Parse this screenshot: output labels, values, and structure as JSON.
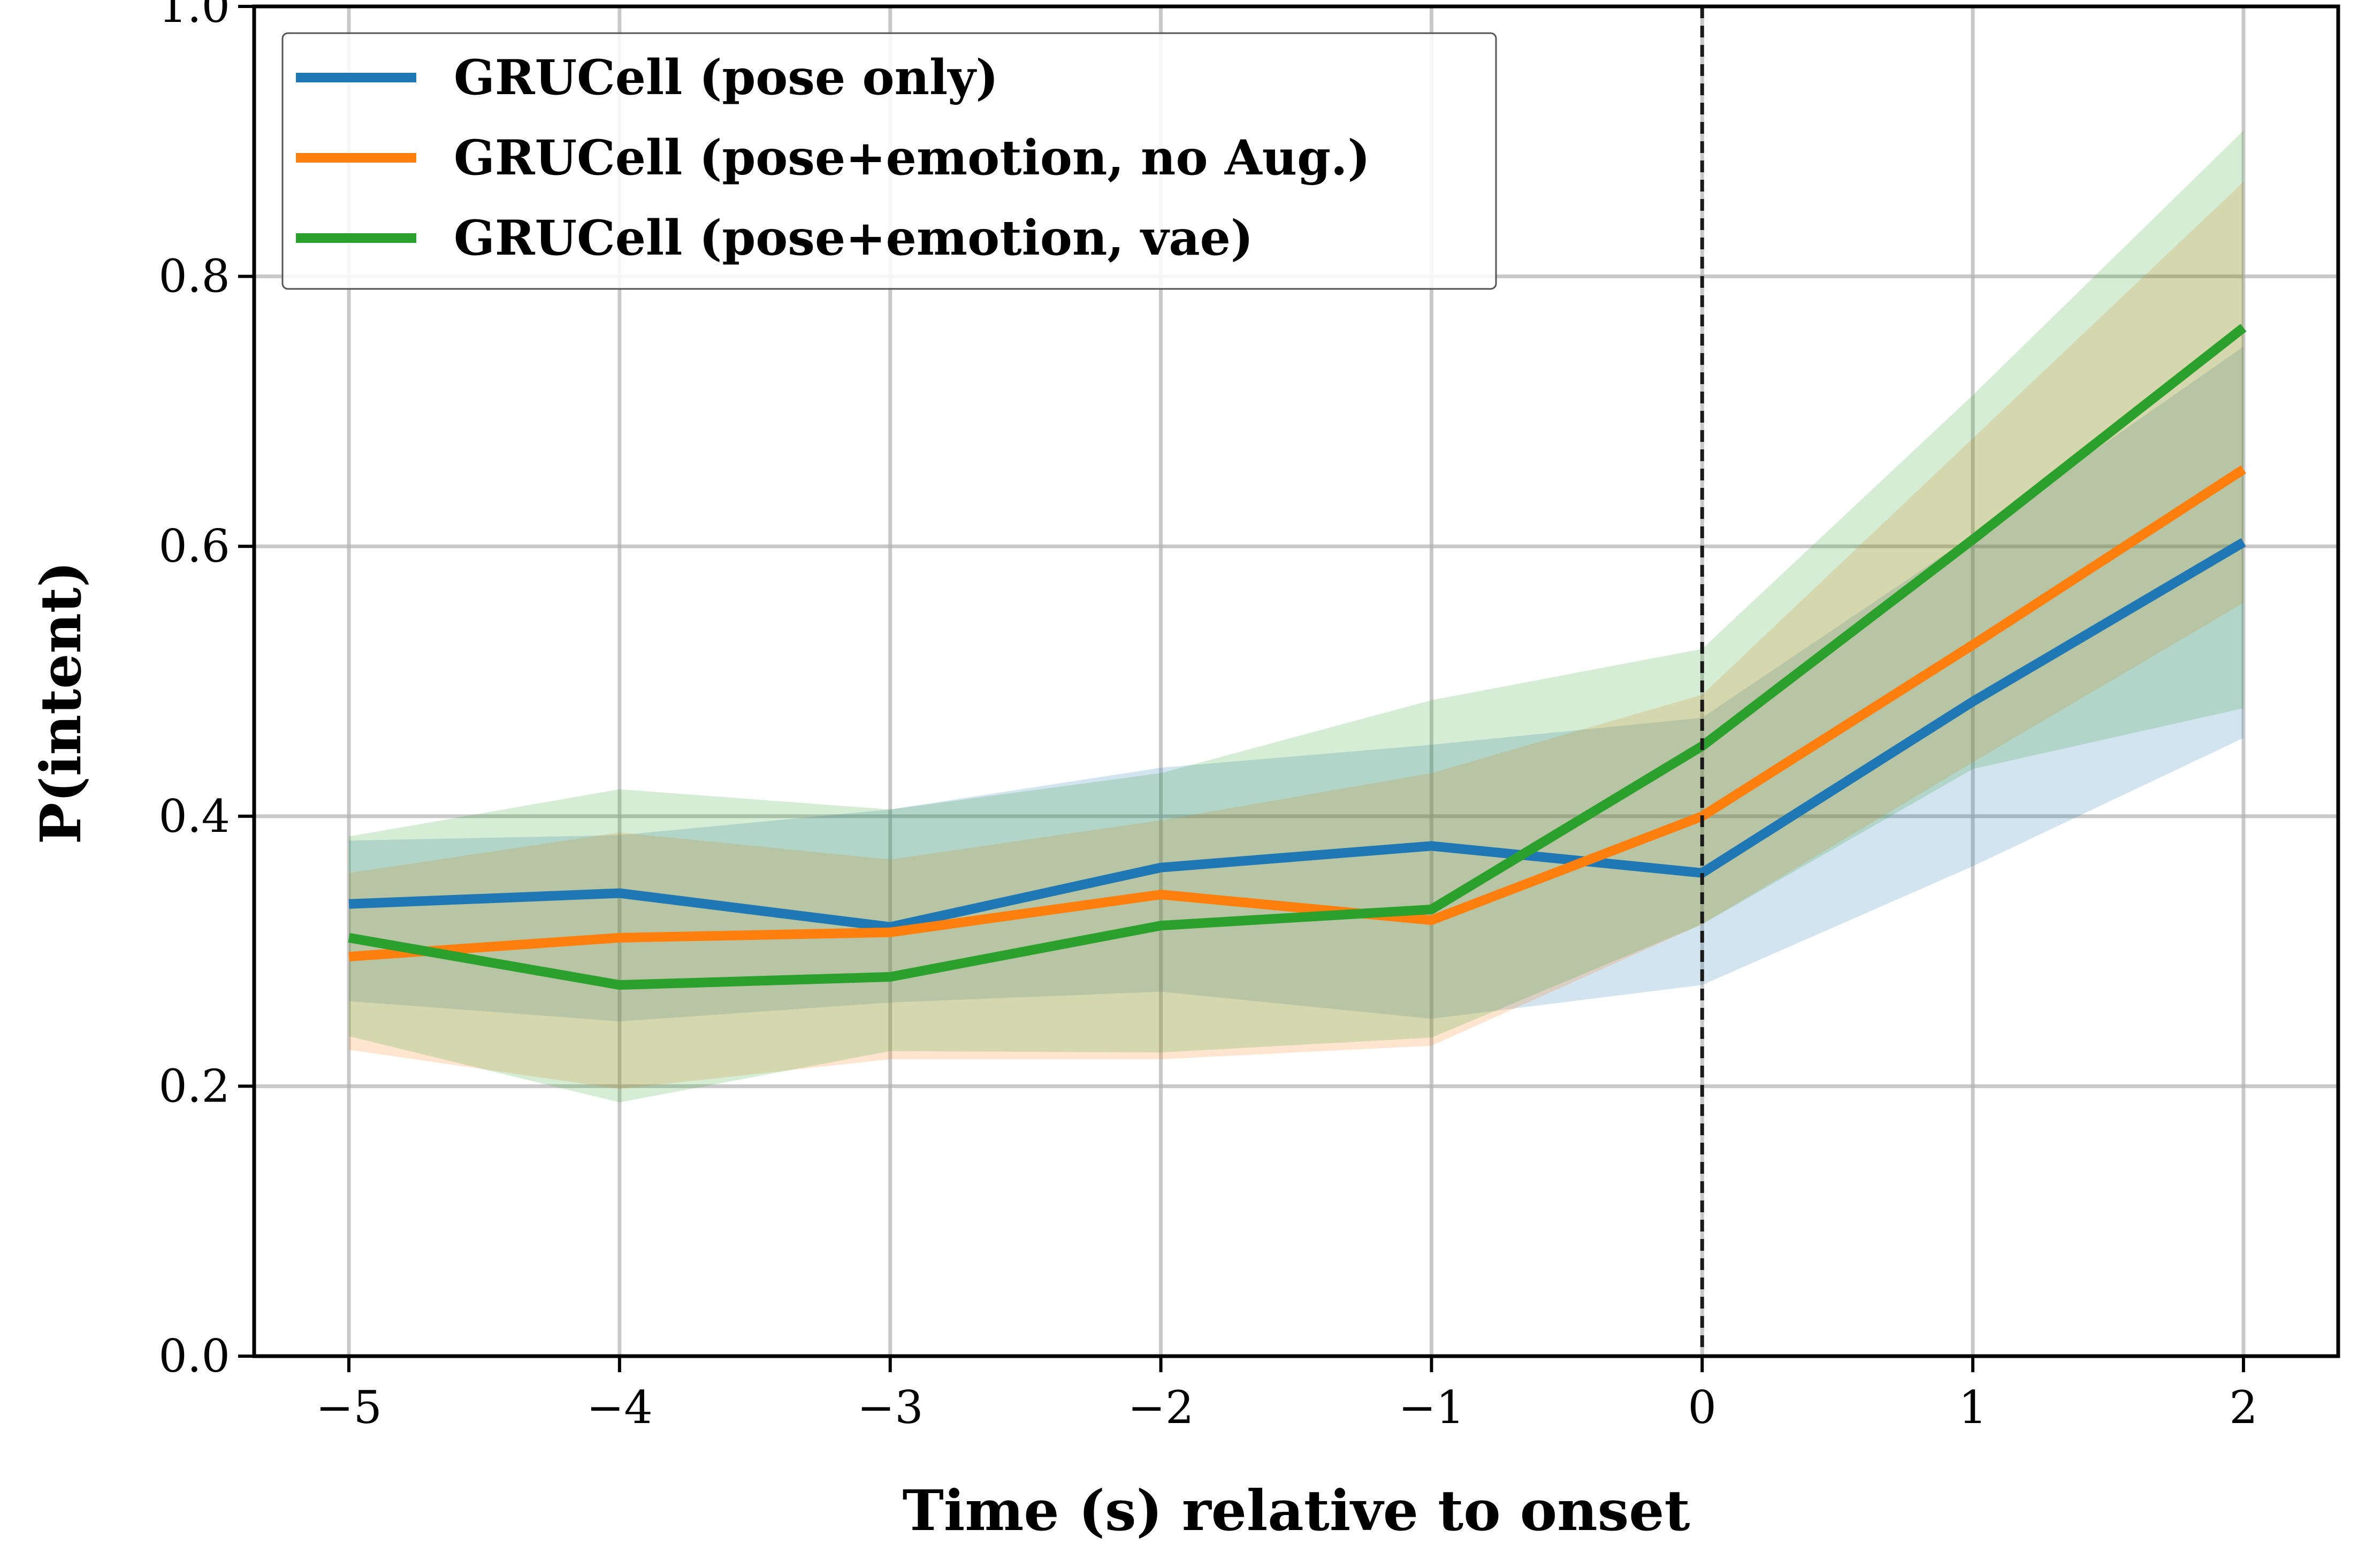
{
  "chart_data": {
    "type": "line",
    "title": "",
    "xlabel": "Time (s) relative to onset",
    "ylabel": "P(intent)",
    "xlim": [
      -5.35,
      2.35
    ],
    "ylim": [
      0.0,
      1.0
    ],
    "x": [
      -5,
      -4,
      -3,
      -2,
      -1,
      0,
      1,
      2
    ],
    "x_tick_labels": [
      "−5",
      "−4",
      "−3",
      "−2",
      "−1",
      "0",
      "1",
      "2"
    ],
    "y_ticks": [
      0.0,
      0.2,
      0.4,
      0.6,
      0.8,
      1.0
    ],
    "y_tick_labels": [
      "0.0",
      "0.2",
      "0.4",
      "0.6",
      "0.8",
      "1.0"
    ],
    "grid": true,
    "onset_line_x": 0,
    "legend_position": "top-left",
    "series": [
      {
        "name": "GRUCell (pose only)",
        "color": "#1f77b4",
        "values": [
          0.335,
          0.343,
          0.318,
          0.362,
          0.378,
          0.358,
          0.485,
          0.603
        ],
        "lower": [
          0.263,
          0.248,
          0.262,
          0.27,
          0.25,
          0.275,
          0.363,
          0.458
        ],
        "upper": [
          0.382,
          0.386,
          0.405,
          0.436,
          0.453,
          0.473,
          0.608,
          0.748
        ]
      },
      {
        "name": "GRUCell (pose+emotion, no Aug.)",
        "color": "#ff7f0e",
        "values": [
          0.296,
          0.31,
          0.314,
          0.342,
          0.323,
          0.4,
          0.527,
          0.657
        ],
        "lower": [
          0.227,
          0.198,
          0.22,
          0.22,
          0.23,
          0.32,
          0.44,
          0.558
        ],
        "upper": [
          0.358,
          0.388,
          0.368,
          0.397,
          0.432,
          0.49,
          0.68,
          0.87
        ]
      },
      {
        "name": "GRUCell (pose+emotion, vae)",
        "color": "#2ca02c",
        "values": [
          0.31,
          0.275,
          0.281,
          0.319,
          0.331,
          0.452,
          0.605,
          0.762
        ],
        "lower": [
          0.237,
          0.188,
          0.226,
          0.225,
          0.236,
          0.32,
          0.435,
          0.48
        ],
        "upper": [
          0.385,
          0.42,
          0.405,
          0.432,
          0.486,
          0.524,
          0.712,
          0.908
        ]
      }
    ]
  }
}
